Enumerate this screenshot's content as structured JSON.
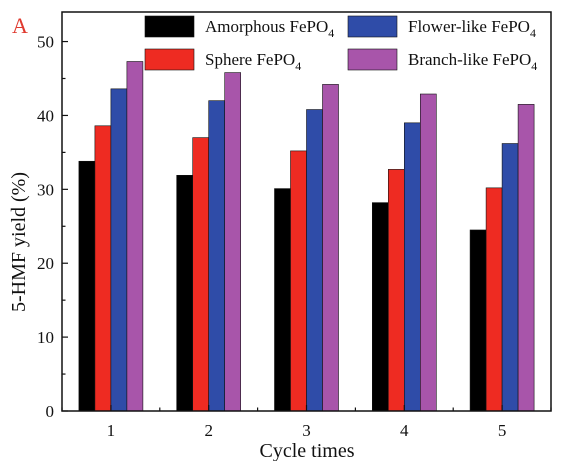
{
  "panel_label": "A",
  "colors": {
    "panel_label": "#e03a2f",
    "axis": "#111111"
  },
  "chart_data": {
    "type": "bar",
    "categories": [
      "1",
      "2",
      "3",
      "4",
      "5"
    ],
    "xlabel": "Cycle times",
    "ylabel": "5-HMF yield (%)",
    "ylim": [
      0,
      54
    ],
    "yticks": [
      0,
      10,
      20,
      30,
      40,
      50
    ],
    "grid": false,
    "legend_position": "top",
    "series": [
      {
        "name": "Amorphous FePO4",
        "label_main": "Amorphous FePO",
        "label_sub": "4",
        "color": "#000000",
        "values": [
          33.8,
          31.9,
          30.1,
          28.2,
          24.5
        ]
      },
      {
        "name": "Sphere FePO4",
        "label_main": "Sphere FePO",
        "label_sub": "4",
        "color": "#ee2b22",
        "values": [
          38.6,
          37.0,
          35.2,
          32.7,
          30.2
        ]
      },
      {
        "name": "Flower-like FePO4",
        "label_main": "Flower-like FePO",
        "label_sub": "4",
        "color": "#2f4ca8",
        "values": [
          43.6,
          42.0,
          40.8,
          39.0,
          36.2
        ]
      },
      {
        "name": "Branch-like FePO4",
        "label_main": "Branch-like FePO",
        "label_sub": "4",
        "color": "#a855aa",
        "values": [
          47.3,
          45.8,
          44.2,
          42.9,
          41.5
        ]
      }
    ]
  }
}
